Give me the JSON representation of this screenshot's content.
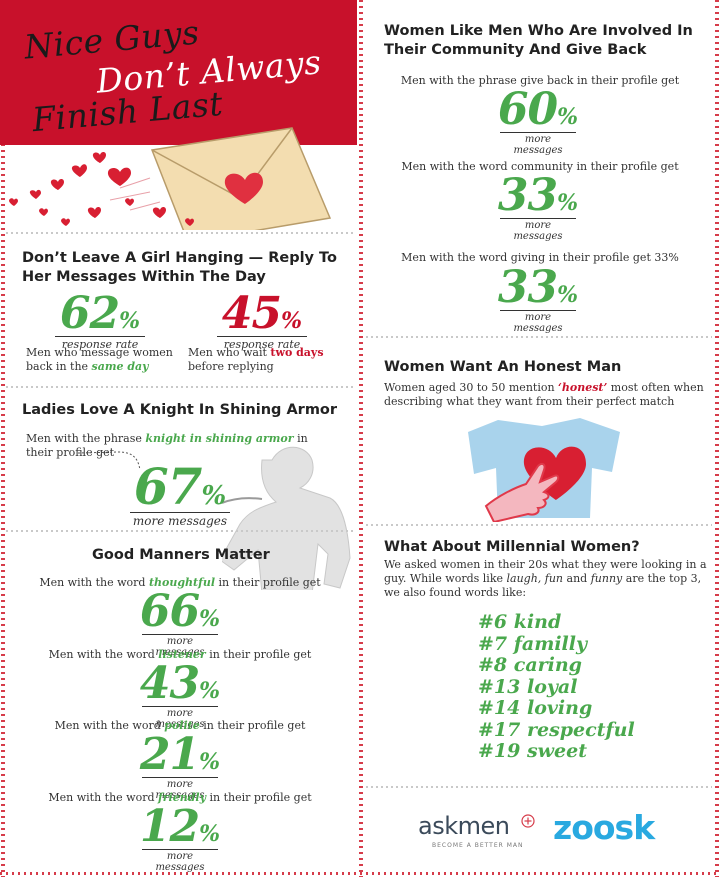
{
  "header": {
    "title_line1": "Nice Guys",
    "title_line2": "Don’t Always",
    "title_line3": "Finish Last"
  },
  "reply": {
    "heading": "Don’t Leave A Girl Hanging — Reply To Her Messages Within The Day",
    "stat1": {
      "value": "62",
      "unit": "%",
      "label": "response rate"
    },
    "stat2": {
      "value": "45",
      "unit": "%",
      "label": "response rate"
    },
    "desc1_a": "Men who message women back in the ",
    "desc1_em": "same day",
    "desc2_a": "Men who wait ",
    "desc2_em": "two days",
    "desc2_b": " before replying"
  },
  "knight": {
    "heading": "Ladies Love A Knight In Shining Armor",
    "text_a": "Men with the phrase ",
    "text_em": "knight in shining armor",
    "text_b": " in their profile get",
    "stat": {
      "value": "67",
      "unit": "%",
      "label": "more messages"
    }
  },
  "manners": {
    "heading": "Good Manners Matter",
    "items": [
      {
        "pre": "Men with the word ",
        "word": "thoughtful",
        "post": " in their profile get",
        "value": "66",
        "unit": "%",
        "label": "more messages"
      },
      {
        "pre": "Men with the word ",
        "word": "listener",
        "post": " in their profile get",
        "value": "43",
        "unit": "%",
        "label": "more messages"
      },
      {
        "pre": "Men with the word ",
        "word": "polite",
        "post": " in their profile get",
        "value": "21",
        "unit": "%",
        "label": "more messages"
      },
      {
        "pre": "Men with the word ",
        "word": "friendly",
        "post": " in their profile get",
        "value": "12",
        "unit": "%",
        "label": "more messages"
      }
    ]
  },
  "community": {
    "heading": "Women Like Men Who Are Involved In Their Community And Give Back",
    "items": [
      {
        "text": "Men with the phrase give back in their profile get",
        "value": "60",
        "unit": "%",
        "label": "more messages"
      },
      {
        "text": "Men with the word community in their profile get",
        "value": "33",
        "unit": "%",
        "label": "more messages"
      },
      {
        "text": "Men with the word giving in their profile get 33%",
        "value": "33",
        "unit": "%",
        "label": "more messages"
      }
    ]
  },
  "honest": {
    "heading": "Women Want An Honest Man",
    "text_a": "Women aged 30 to 50 mention ",
    "text_em": "‘honest’",
    "text_b": " most often when describing what they want from their perfect match"
  },
  "millennial": {
    "heading": "What About Millennial Women?",
    "text_a": "We asked women in their 20s what they were looking in a guy. While words like ",
    "text_em1": "laugh, fun",
    "text_mid": " and ",
    "text_em2": "funny",
    "text_b": " are the top 3, we also found words like:",
    "words": [
      "#6 kind",
      "#7 familly",
      "#8 caring",
      "#13 loyal",
      "#14 loving",
      "#17 respectful",
      "#19 sweet"
    ]
  },
  "logos": {
    "askmen": "askmen",
    "askmen_tag": "BECOME A BETTER MAN",
    "zoosk": "zoosk"
  },
  "colors": {
    "brand_red": "#c8112b",
    "accent_green": "#4aa84d",
    "zoosk_blue": "#29a9e0",
    "shirt_blue": "#a9d3ec"
  }
}
